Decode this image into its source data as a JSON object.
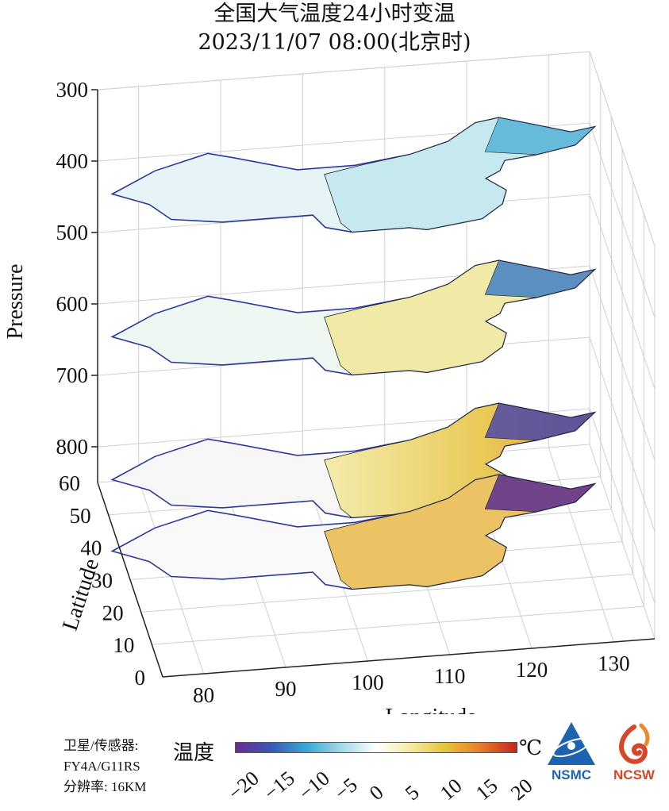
{
  "chart_data": {
    "type": "heatmap",
    "title": "全国大气温度24小时变温",
    "subtitle": "2023/11/07 08:00(北京时)",
    "xlabel": "Longitude",
    "ylabel": "Latitude",
    "zlabel": "Pressure",
    "x_ticks": [
      "80",
      "90",
      "100",
      "110",
      "120",
      "130"
    ],
    "y_ticks": [
      "0",
      "10",
      "20",
      "30",
      "40",
      "50",
      "60"
    ],
    "z_ticks": [
      "300",
      "400",
      "500",
      "600",
      "700",
      "800"
    ],
    "xlim": [
      75,
      135
    ],
    "ylim": [
      0,
      60
    ],
    "zlim": [
      300,
      850
    ],
    "z_reversed": true,
    "grid": true,
    "layers": [
      {
        "pressure": 350,
        "dominant_change": "slight cooling (-5 to 0) west and north-east, near zero centre"
      },
      {
        "pressure": 550,
        "dominant_change": "warming (0 to 5) east, cooling (-10) far north-east"
      },
      {
        "pressure": 750,
        "dominant_change": "warming (5 to 15) central-north China, cooling (-15) north-east"
      },
      {
        "pressure": 850,
        "dominant_change": "warming (5 to 15) east China, strong cooling (-20) north-east"
      }
    ],
    "colorbar": {
      "label": "温度",
      "unit": "℃",
      "min": -20,
      "max": 20,
      "ticks": [
        "−20",
        "−15",
        "−10",
        "−5",
        "0",
        "5",
        "10",
        "15",
        "20"
      ],
      "colors": [
        "#6a2c91",
        "#3a58b3",
        "#3aa6d3",
        "#9fd9e6",
        "#ffffff",
        "#f3eaa0",
        "#e6c13a",
        "#e57a2a",
        "#c42420"
      ]
    }
  },
  "footer": {
    "satellite_label": "卫星/传感器:",
    "satellite_value": "FY4A/G11RS",
    "resolution": "分辨率: 16KM"
  },
  "logos": {
    "nsmc": "NSMC",
    "ncsw": "NCSW"
  }
}
